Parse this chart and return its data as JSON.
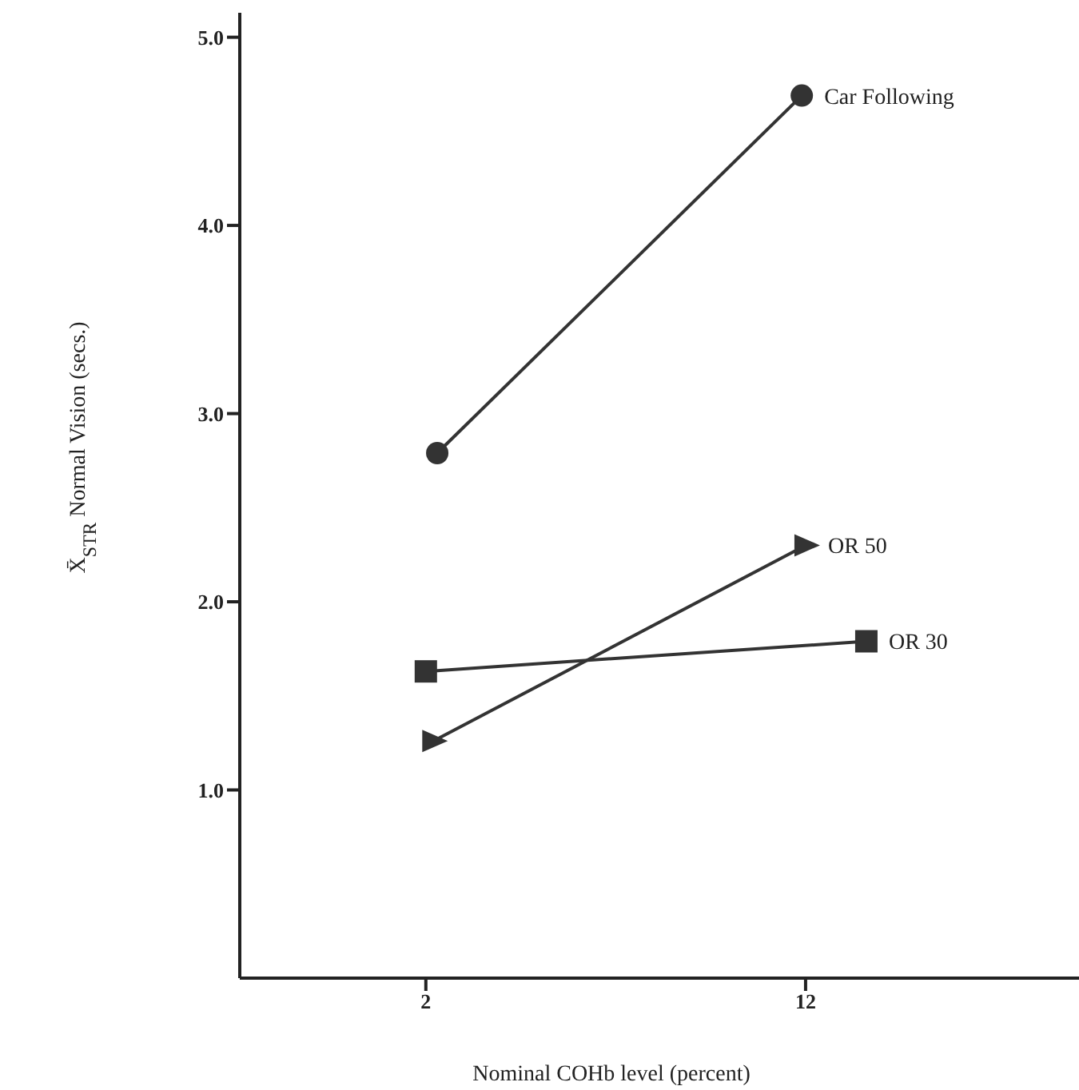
{
  "chart_data": {
    "type": "line",
    "xlabel": "Nominal COHb level (percent)",
    "ylabel": "X̄$_{STR}$ Normal Vision (secs.)",
    "xlim": [
      -2.9,
      19.2
    ],
    "xticks": [
      2,
      12
    ],
    "ylim": [
      0,
      5.13
    ],
    "yticks": [
      {
        "value": 1,
        "label": "1.0"
      },
      {
        "value": 2,
        "label": "2.0"
      },
      {
        "value": 3,
        "label": "3.0"
      },
      {
        "value": 4,
        "label": "4.0"
      },
      {
        "value": 5,
        "label": "5.0"
      }
    ],
    "grid": false,
    "legend": false,
    "series": [
      {
        "name": "Car Following",
        "color": "#333333",
        "marker": "circle",
        "x": [
          2.3,
          11.9
        ],
        "values": [
          2.79,
          4.69
        ]
      },
      {
        "name": "OR 50",
        "color": "#333333",
        "marker": "triangle",
        "x": [
          2.2,
          12.0
        ],
        "values": [
          1.26,
          2.3
        ]
      },
      {
        "name": "OR 30",
        "color": "#333333",
        "marker": "square",
        "x": [
          2.0,
          13.6
        ],
        "values": [
          1.63,
          1.79
        ]
      }
    ]
  }
}
